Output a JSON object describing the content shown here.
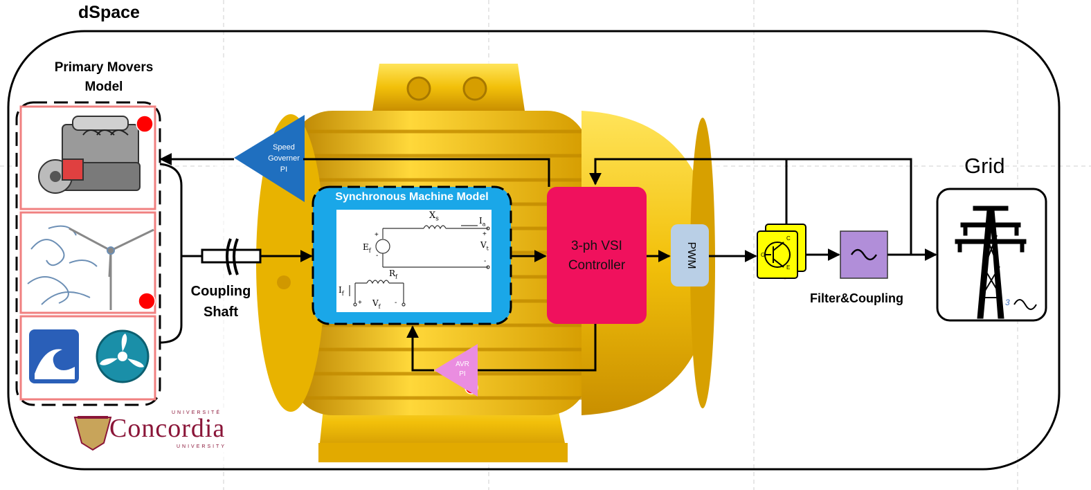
{
  "title": "dSpace",
  "primary_movers": {
    "label_line1": "Primary Movers",
    "label_line2": "Model"
  },
  "speed_governor": {
    "line1": "Speed",
    "line2": "Governer",
    "line3": "PI"
  },
  "coupling_shaft": {
    "line1": "Coupling",
    "line2": "Shaft"
  },
  "sync_machine": {
    "title": "Synchronous Machine Model",
    "xs": "X",
    "xs_sub": "s",
    "ia": "I",
    "ia_sub": "a",
    "ef": "E",
    "ef_sub": "f",
    "vt": "V",
    "vt_sub": "t",
    "rf": "R",
    "rf_sub": "f",
    "if_label": "I",
    "if_sub": "f",
    "vf": "V",
    "vf_sub": "f",
    "plus": "+",
    "minus": "-"
  },
  "vsi": {
    "line1": "3-ph VSI",
    "line2": "Controller"
  },
  "pwm": "PWM",
  "avr": {
    "line1": "AVR",
    "line2": "PI"
  },
  "igbt": {
    "c": "C",
    "g": "G",
    "e": "E"
  },
  "filter_label": "Filter&Coupling",
  "grid": {
    "label": "Grid",
    "phase": "3"
  },
  "logo": {
    "top": "UNIVERSITÉ",
    "main": "Concordia",
    "bottom": "UNIVERSITY"
  },
  "colors": {
    "sync_box": "#1aa7e8",
    "vsi_box": "#f0115d",
    "pwm_box": "#b9cfe6",
    "governor": "#1f6fbf",
    "avr": "#ea8de0",
    "filter": "#b18ed9",
    "igbt": "#ffff00",
    "indicator": "#ff0000",
    "motor": "#f0c30a",
    "prime_mover_frame": "#f08080",
    "logo": "#8a1538"
  }
}
